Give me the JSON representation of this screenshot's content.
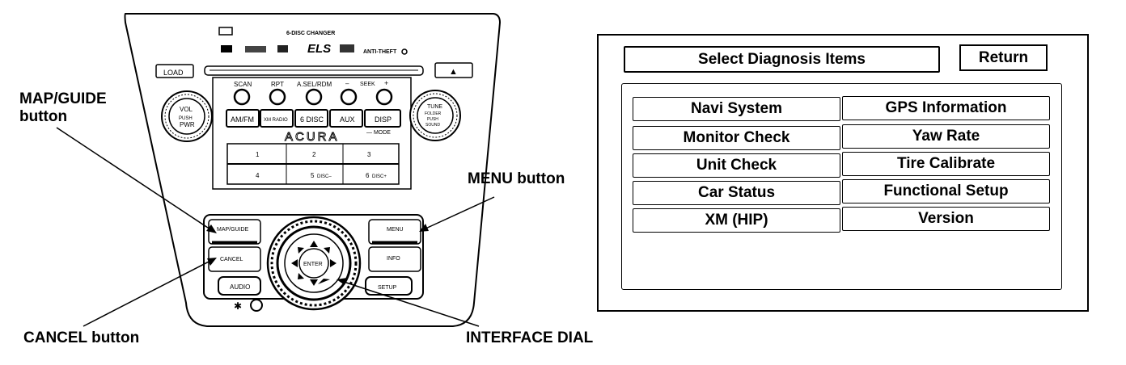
{
  "callouts": {
    "map_guide_line1": "MAP/GUIDE",
    "map_guide_line2": "button",
    "menu": "MENU button",
    "cancel": "CANCEL button",
    "interface_dial": "INTERFACE DIAL"
  },
  "unit": {
    "changer_label": "6-DISC CHANGER",
    "anti_theft": "ANTI-THEFT",
    "els": "ELS",
    "load": "LOAD",
    "eject_symbol": "▲",
    "scan": "SCAN",
    "rpt": "RPT",
    "asel_rdm": "A.SEL/RDM",
    "seek": "SEEK",
    "seek_minus": "–",
    "seek_plus": "+",
    "vol": "VOL",
    "push": "PUSH",
    "pwr": "PWR",
    "tune": "TUNE",
    "tune_sub1": "FOLDER",
    "tune_sub2": "PUSH",
    "tune_sub3": "SOUND",
    "am_fm": "AM/FM",
    "xm_radio": "XM RADIO",
    "six_disc": "6 DISC",
    "aux": "AUX",
    "disp": "DISP",
    "mode": "— MODE",
    "brand": "ACURA",
    "preset1": "1",
    "preset2": "2",
    "preset3": "3",
    "preset4": "4",
    "preset5": "5",
    "preset5_sub": "DISC–",
    "preset6": "6",
    "preset6_sub": "DISC+",
    "map_guide": "MAP/GUIDE",
    "menu": "MENU",
    "cancel": "CANCEL",
    "info": "INFO",
    "audio": "AUDIO",
    "setup": "SETUP",
    "enter": "ENTER"
  },
  "screen": {
    "title": "Select Diagnosis Items",
    "return_label": "Return",
    "items": [
      "Navi System",
      "GPS Information",
      "Monitor Check",
      "Yaw Rate",
      "Unit Check",
      "Tire Calibrate",
      "Car Status",
      "Functional Setup",
      "XM (HIP)",
      "Version"
    ]
  }
}
